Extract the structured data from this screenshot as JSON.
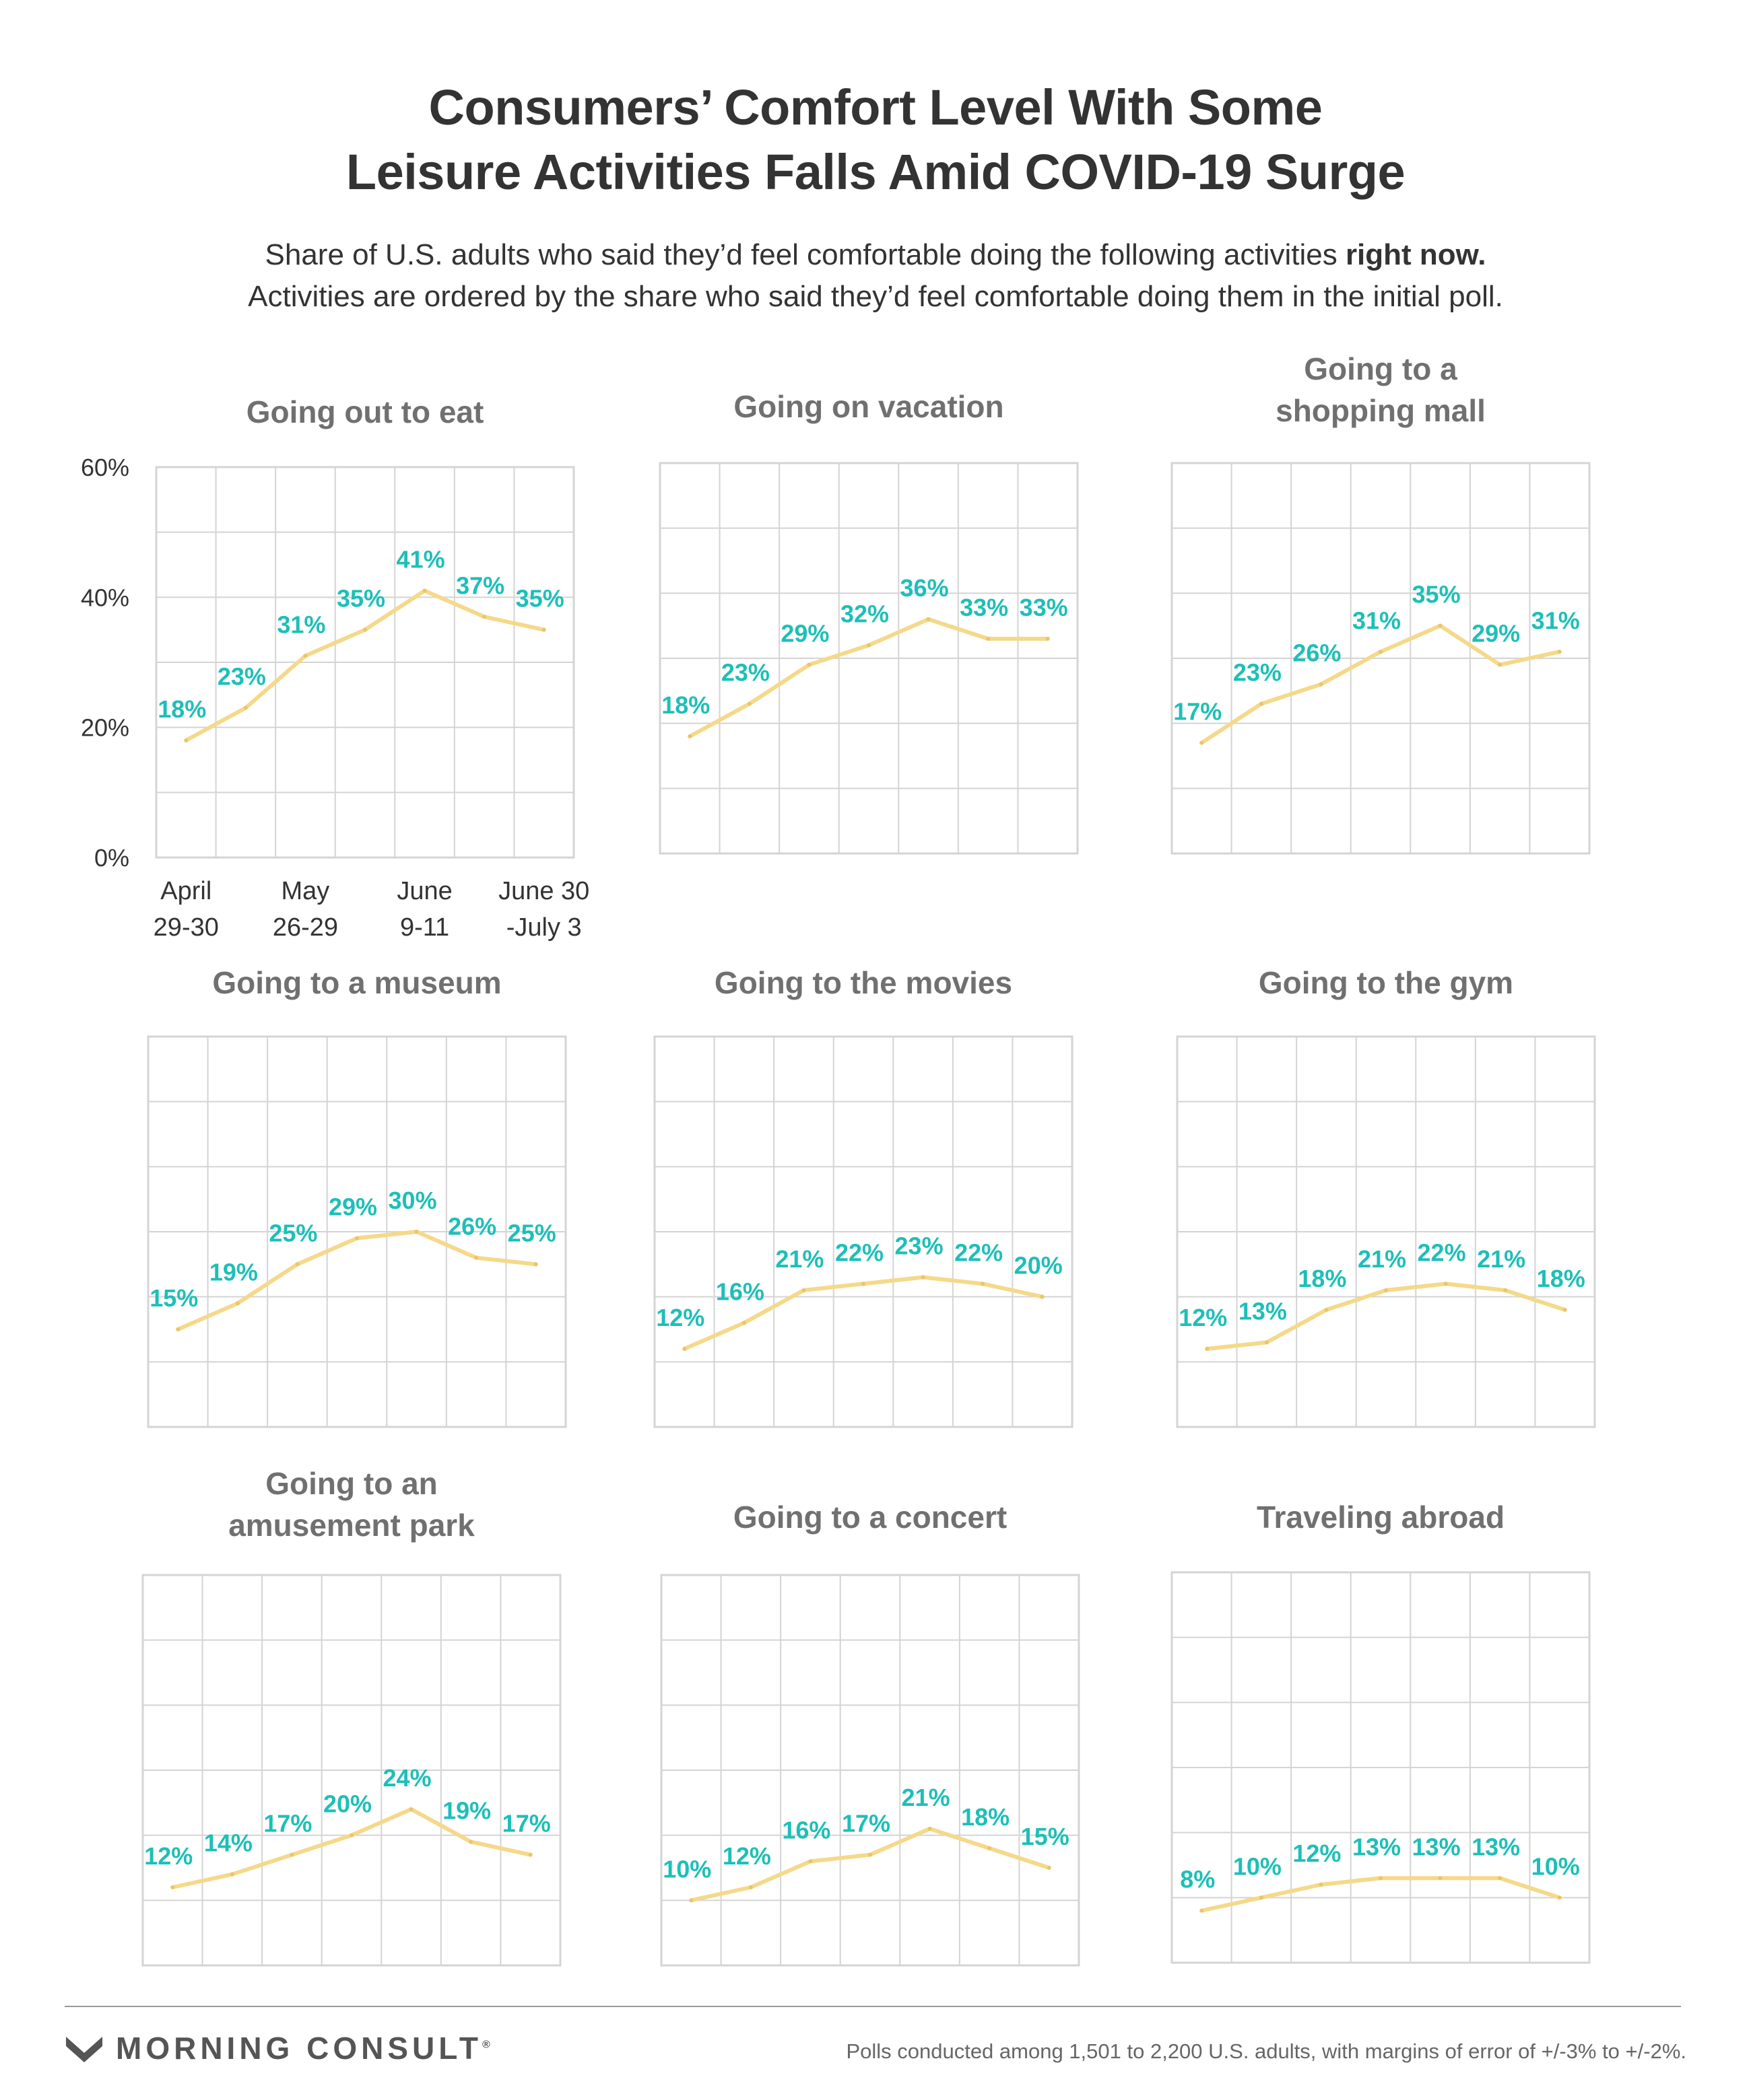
{
  "header": {
    "title_line1": "Consumers’ Comfort Level With Some",
    "title_line2": "Leisure Activities Falls Amid COVID-19 Surge",
    "subtitle_line1_prefix": "Share of U.S. adults who said they’d feel comfortable doing the following activities ",
    "subtitle_line1_bold": "right now.",
    "subtitle_line2": "Activities are ordered by the share who said they’d feel comfortable doing them in the initial poll."
  },
  "footer": {
    "brand": "MORNING CONSULT",
    "brand_mark": "®",
    "note": "Polls conducted among 1,501 to 2,200 U.S. adults, with margins of error of +/-3% to +/-2%."
  },
  "colors": {
    "line": "#f5d98a",
    "label": "#1dbfb8",
    "grid": "#d4d4d4",
    "panel_title": "#707070",
    "axis_text": "#333333"
  },
  "chart_data": {
    "type": "line",
    "unit": "%",
    "ylim": [
      0,
      60
    ],
    "y_ticks": [
      "0%",
      "20%",
      "40%",
      "60%"
    ],
    "x_tick_labels": [
      [
        "April",
        "29-30"
      ],
      [
        "May",
        "26-29"
      ],
      [
        "June",
        "9-11"
      ],
      [
        "June 30",
        "-July 3"
      ]
    ],
    "points_per_series": 7,
    "grid": true,
    "series": [
      {
        "title": [
          "Going out to eat"
        ],
        "values": [
          18,
          23,
          31,
          35,
          41,
          37,
          35
        ]
      },
      {
        "title": [
          "Going on vacation"
        ],
        "values": [
          18,
          23,
          29,
          32,
          36,
          33,
          33
        ]
      },
      {
        "title": [
          "Going to a",
          "shopping mall"
        ],
        "values": [
          17,
          23,
          26,
          31,
          35,
          29,
          31
        ]
      },
      {
        "title": [
          "Going to a museum"
        ],
        "values": [
          15,
          19,
          25,
          29,
          30,
          26,
          25
        ]
      },
      {
        "title": [
          "Going to the movies"
        ],
        "values": [
          12,
          16,
          21,
          22,
          23,
          22,
          20
        ]
      },
      {
        "title": [
          "Going to the gym"
        ],
        "values": [
          12,
          13,
          18,
          21,
          22,
          21,
          18
        ]
      },
      {
        "title": [
          "Going to an",
          "amusement park"
        ],
        "values": [
          12,
          14,
          17,
          20,
          24,
          19,
          17
        ]
      },
      {
        "title": [
          "Going to a concert"
        ],
        "values": [
          10,
          12,
          16,
          17,
          21,
          18,
          15
        ]
      },
      {
        "title": [
          "Traveling abroad"
        ],
        "values": [
          8,
          10,
          12,
          13,
          13,
          13,
          10
        ]
      }
    ]
  }
}
